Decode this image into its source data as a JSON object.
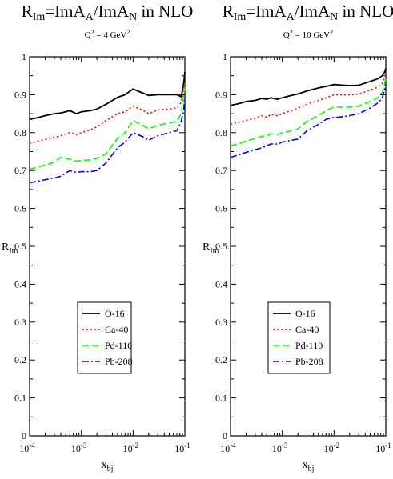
{
  "chart_data": [
    {
      "type": "line",
      "title": "R_Im=ImA_A/ImA_N in NLO",
      "title_parts": {
        "r": "R",
        "r_sub": "Im",
        "eq": "=ImA",
        "a_sub": "A",
        "slash": "/ImA",
        "n_sub": "N",
        "tail": " in NLO"
      },
      "subtitle": "Q^2 = 4 GeV^2",
      "subtitle_parts": {
        "q": "Q",
        "q_sup": "2",
        "mid": " = 4 GeV",
        "gev_sup": "2"
      },
      "xlabel": "x_bj",
      "xlabel_parts": {
        "main": "x",
        "sub": "bj"
      },
      "ylabel": "R_Im",
      "ylabel_parts": {
        "main": "R",
        "sub": "Im"
      },
      "xscale": "log",
      "xlim": [
        0.0001,
        0.1
      ],
      "ylim": [
        0,
        1
      ],
      "x_ticks": [
        {
          "base": "10",
          "exp": "-4"
        },
        {
          "base": "10",
          "exp": "-3"
        },
        {
          "base": "10",
          "exp": "-2"
        },
        {
          "base": "10",
          "exp": "-1"
        }
      ],
      "y_ticks": [
        "0",
        "0.1",
        "0.2",
        "0.3",
        "0.4",
        "0.5",
        "0.6",
        "0.7",
        "0.8",
        "0.9",
        "1"
      ],
      "legend": "center-left",
      "series": [
        {
          "name": "O-16",
          "color": "#000000",
          "dash": "solid",
          "x": [
            0.0001,
            0.00015,
            0.0002,
            0.0003,
            0.0004,
            0.0006,
            0.0008,
            0.001,
            0.0015,
            0.002,
            0.003,
            0.005,
            0.007,
            0.01,
            0.015,
            0.02,
            0.03,
            0.05,
            0.07,
            0.085,
            0.095,
            0.1
          ],
          "y": [
            0.835,
            0.84,
            0.845,
            0.85,
            0.852,
            0.858,
            0.85,
            0.855,
            0.858,
            0.862,
            0.875,
            0.893,
            0.9,
            0.915,
            0.905,
            0.898,
            0.9,
            0.9,
            0.9,
            0.895,
            0.93,
            0.96
          ]
        },
        {
          "name": "Ca-40",
          "color": "#ff0000",
          "dash": "dot",
          "x": [
            0.0001,
            0.00015,
            0.0002,
            0.0003,
            0.0004,
            0.0006,
            0.0008,
            0.001,
            0.0015,
            0.002,
            0.003,
            0.005,
            0.007,
            0.01,
            0.015,
            0.02,
            0.03,
            0.05,
            0.07,
            0.085,
            0.095,
            0.1
          ],
          "y": [
            0.772,
            0.778,
            0.782,
            0.788,
            0.792,
            0.8,
            0.795,
            0.8,
            0.808,
            0.815,
            0.832,
            0.85,
            0.855,
            0.87,
            0.86,
            0.85,
            0.86,
            0.862,
            0.865,
            0.88,
            0.92,
            0.935
          ]
        },
        {
          "name": "Pd-110",
          "color": "#00ff00",
          "dash": "dash",
          "x": [
            0.0001,
            0.00015,
            0.0002,
            0.0003,
            0.0004,
            0.0006,
            0.0008,
            0.001,
            0.0015,
            0.002,
            0.003,
            0.005,
            0.007,
            0.01,
            0.015,
            0.02,
            0.03,
            0.05,
            0.07,
            0.085,
            0.095,
            0.1
          ],
          "y": [
            0.703,
            0.71,
            0.715,
            0.722,
            0.735,
            0.73,
            0.725,
            0.727,
            0.728,
            0.732,
            0.745,
            0.785,
            0.8,
            0.832,
            0.82,
            0.81,
            0.82,
            0.825,
            0.83,
            0.85,
            0.9,
            0.92
          ]
        },
        {
          "name": "Pb-208",
          "color": "#0000ff",
          "dash": "dashdot",
          "x": [
            0.0001,
            0.00015,
            0.0002,
            0.0003,
            0.0004,
            0.0006,
            0.0008,
            0.001,
            0.0015,
            0.002,
            0.003,
            0.005,
            0.007,
            0.01,
            0.015,
            0.02,
            0.03,
            0.05,
            0.07,
            0.085,
            0.095,
            0.1
          ],
          "y": [
            0.668,
            0.672,
            0.676,
            0.68,
            0.685,
            0.7,
            0.695,
            0.697,
            0.697,
            0.7,
            0.72,
            0.76,
            0.775,
            0.8,
            0.79,
            0.78,
            0.792,
            0.8,
            0.805,
            0.83,
            0.86,
            0.895
          ]
        }
      ]
    },
    {
      "type": "line",
      "title": "R_Im=ImA_A/ImA_N in NLO",
      "title_parts": {
        "r": "R",
        "r_sub": "Im",
        "eq": "=ImA",
        "a_sub": "A",
        "slash": "/ImA",
        "n_sub": "N",
        "tail": " in NLO"
      },
      "subtitle": "Q^2 = 10 GeV^2",
      "subtitle_parts": {
        "q": "Q",
        "q_sup": "2",
        "mid": " = 10 GeV",
        "gev_sup": "2"
      },
      "xlabel": "x_bj",
      "xlabel_parts": {
        "main": "x",
        "sub": "bj"
      },
      "ylabel": "R_Im",
      "ylabel_parts": {
        "main": "R",
        "sub": "Im"
      },
      "xscale": "log",
      "xlim": [
        0.0001,
        0.1
      ],
      "ylim": [
        0,
        1
      ],
      "x_ticks": [
        {
          "base": "10",
          "exp": "-4"
        },
        {
          "base": "10",
          "exp": "-3"
        },
        {
          "base": "10",
          "exp": "-2"
        },
        {
          "base": "10",
          "exp": "-1"
        }
      ],
      "y_ticks": [
        "0",
        "0.1",
        "0.2",
        "0.3",
        "0.4",
        "0.5",
        "0.6",
        "0.7",
        "0.8",
        "0.9",
        "1"
      ],
      "legend": "center-left",
      "series": [
        {
          "name": "O-16",
          "color": "#000000",
          "dash": "solid",
          "x": [
            0.0001,
            0.00015,
            0.0002,
            0.0003,
            0.0004,
            0.0005,
            0.0006,
            0.0008,
            0.001,
            0.0015,
            0.002,
            0.003,
            0.005,
            0.007,
            0.01,
            0.015,
            0.02,
            0.03,
            0.05,
            0.07,
            0.085,
            0.095,
            0.1
          ],
          "y": [
            0.872,
            0.877,
            0.882,
            0.885,
            0.89,
            0.888,
            0.892,
            0.888,
            0.892,
            0.898,
            0.902,
            0.91,
            0.918,
            0.922,
            0.927,
            0.925,
            0.924,
            0.925,
            0.935,
            0.942,
            0.95,
            0.96,
            0.97
          ]
        },
        {
          "name": "Ca-40",
          "color": "#ff0000",
          "dash": "dot",
          "x": [
            0.0001,
            0.00015,
            0.0002,
            0.0003,
            0.0004,
            0.0005,
            0.0006,
            0.0008,
            0.001,
            0.0015,
            0.002,
            0.003,
            0.005,
            0.007,
            0.01,
            0.015,
            0.02,
            0.03,
            0.05,
            0.07,
            0.085,
            0.095,
            0.1
          ],
          "y": [
            0.822,
            0.828,
            0.832,
            0.838,
            0.845,
            0.84,
            0.848,
            0.845,
            0.85,
            0.858,
            0.865,
            0.875,
            0.885,
            0.892,
            0.9,
            0.9,
            0.9,
            0.902,
            0.912,
            0.92,
            0.93,
            0.945,
            0.955
          ]
        },
        {
          "name": "Pd-110",
          "color": "#00ff00",
          "dash": "dash",
          "x": [
            0.0001,
            0.00015,
            0.0002,
            0.0003,
            0.0004,
            0.0005,
            0.0006,
            0.0008,
            0.001,
            0.0015,
            0.002,
            0.003,
            0.005,
            0.007,
            0.01,
            0.015,
            0.02,
            0.03,
            0.05,
            0.07,
            0.085,
            0.095,
            0.1
          ],
          "y": [
            0.765,
            0.772,
            0.778,
            0.785,
            0.79,
            0.792,
            0.797,
            0.795,
            0.8,
            0.805,
            0.81,
            0.83,
            0.845,
            0.858,
            0.868,
            0.867,
            0.867,
            0.87,
            0.882,
            0.892,
            0.905,
            0.93,
            0.945
          ]
        },
        {
          "name": "Pb-208",
          "color": "#0000ff",
          "dash": "dashdot",
          "x": [
            0.0001,
            0.00015,
            0.0002,
            0.0003,
            0.0004,
            0.0005,
            0.0006,
            0.0008,
            0.001,
            0.0015,
            0.002,
            0.003,
            0.005,
            0.007,
            0.01,
            0.015,
            0.02,
            0.03,
            0.05,
            0.07,
            0.085,
            0.095,
            0.1
          ],
          "y": [
            0.735,
            0.742,
            0.748,
            0.755,
            0.76,
            0.765,
            0.77,
            0.77,
            0.775,
            0.78,
            0.783,
            0.805,
            0.822,
            0.835,
            0.84,
            0.842,
            0.845,
            0.85,
            0.865,
            0.878,
            0.89,
            0.915,
            0.93
          ]
        }
      ]
    }
  ]
}
